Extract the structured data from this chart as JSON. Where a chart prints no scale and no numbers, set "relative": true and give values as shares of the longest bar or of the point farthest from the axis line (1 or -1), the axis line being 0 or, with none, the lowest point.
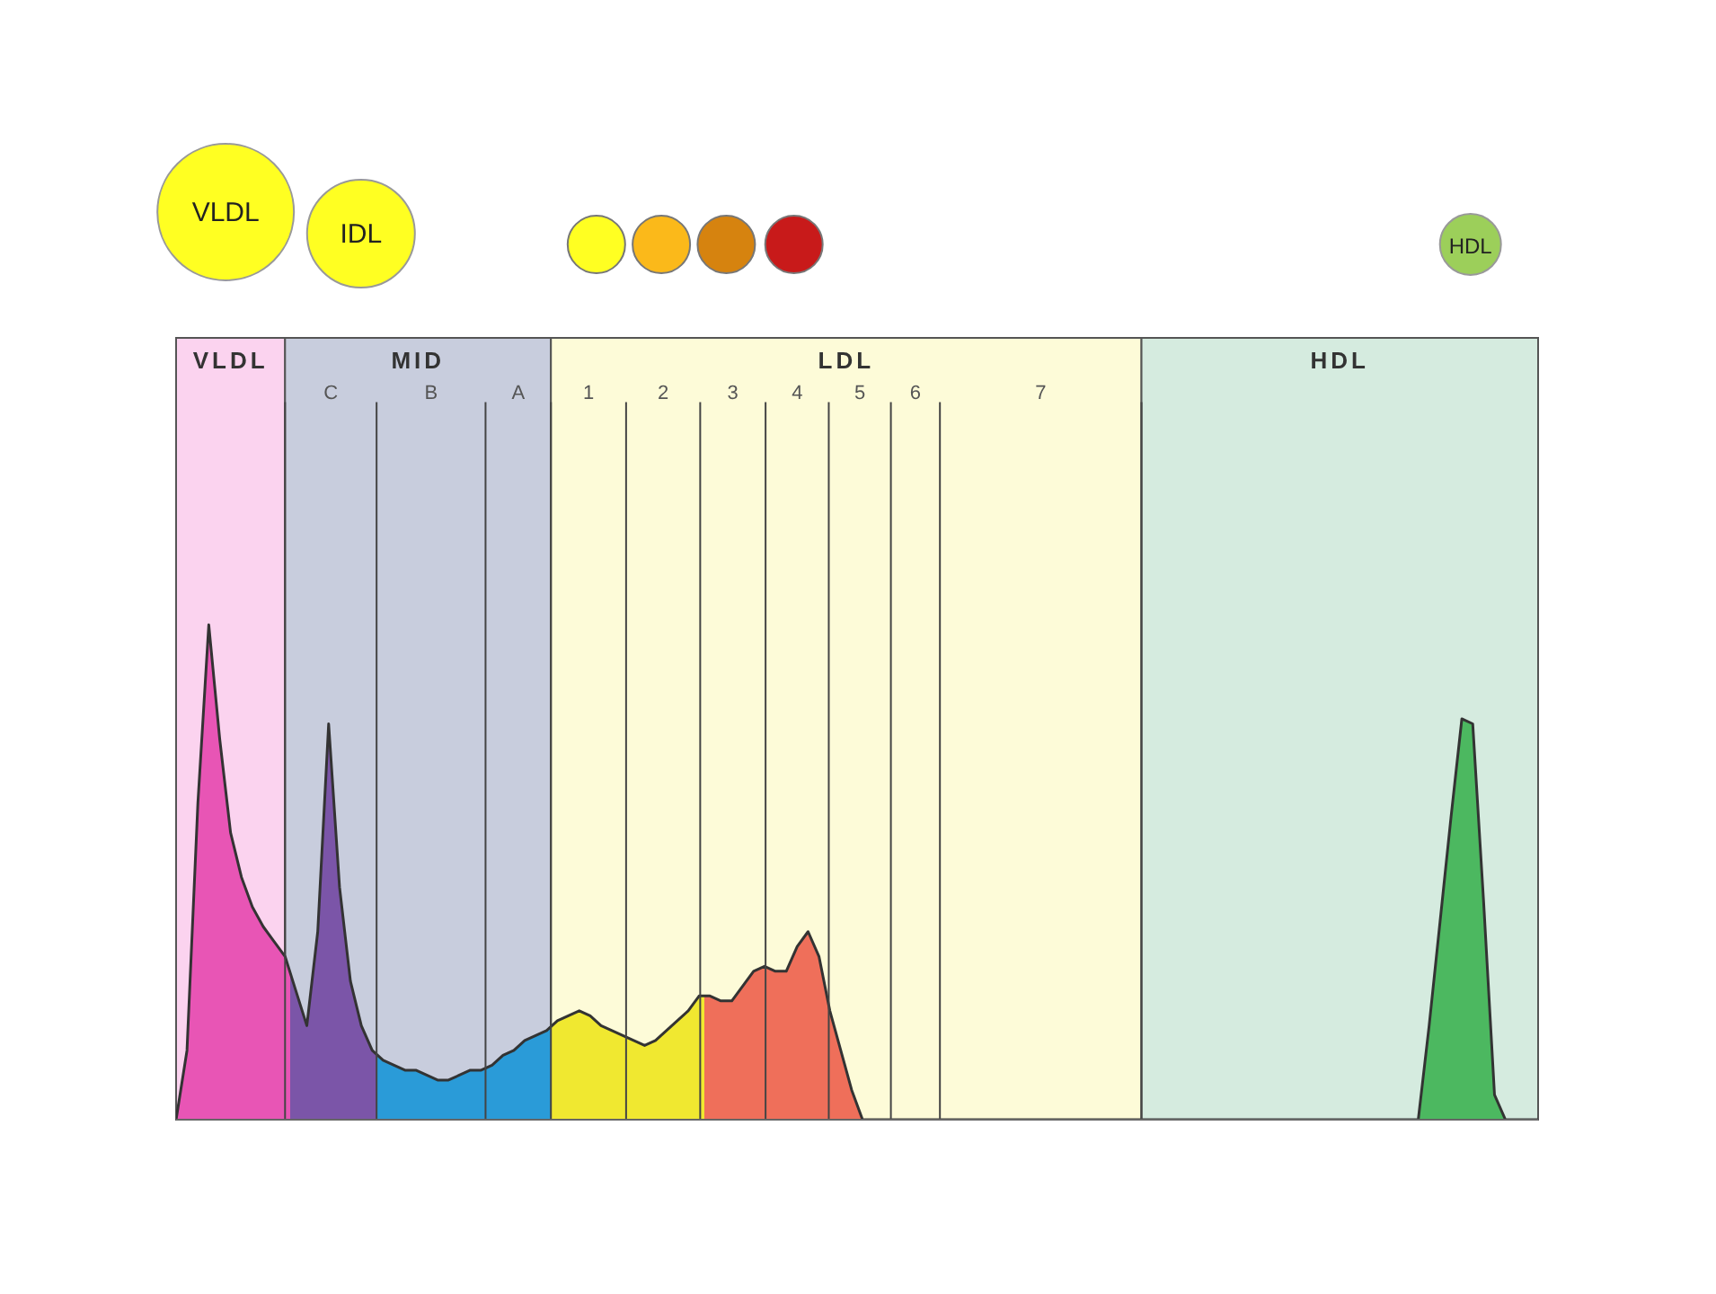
{
  "chart_data": {
    "type": "area",
    "relative": true,
    "tick_labels": false,
    "color": "#333333",
    "categories": [
      null,
      null,
      null,
      null,
      null,
      null,
      null,
      null,
      null,
      null,
      null,
      null,
      null,
      null,
      null,
      null,
      null,
      null,
      null,
      null,
      null,
      null,
      null,
      null,
      null,
      null,
      null,
      null,
      null,
      null,
      null,
      null,
      null,
      null,
      null,
      null,
      null,
      null,
      null,
      null,
      null,
      null,
      null,
      null,
      null,
      null,
      null,
      null,
      null,
      null,
      null,
      null,
      null,
      null,
      null,
      null,
      null,
      null,
      null,
      null,
      null,
      null,
      null,
      null,
      null,
      null,
      null,
      null,
      null,
      null,
      null,
      null,
      null,
      null,
      null,
      null,
      null,
      null,
      null,
      null,
      null,
      null,
      null,
      null,
      null,
      null,
      null,
      null,
      null,
      null,
      null,
      null,
      null,
      null,
      null,
      null,
      null,
      null,
      null,
      null,
      null,
      null,
      null,
      null,
      null,
      null,
      null,
      null,
      null,
      null,
      null,
      null,
      null,
      null,
      null,
      null,
      null,
      null,
      null,
      null,
      null,
      null,
      null,
      null,
      null,
      null
    ],
    "values": [
      0,
      0.14,
      0.64,
      1.0,
      0.77,
      0.58,
      0.49,
      0.43,
      0.39,
      0.36,
      0.33,
      0.26,
      0.19,
      0.38,
      0.8,
      0.47,
      0.28,
      0.19,
      0.14,
      0.12,
      0.11,
      0.1,
      0.1,
      0.09,
      0.08,
      0.08,
      0.09,
      0.1,
      0.1,
      0.11,
      0.13,
      0.14,
      0.16,
      0.17,
      0.18,
      0.2,
      0.21,
      0.22,
      0.21,
      0.19,
      0.18,
      0.17,
      0.16,
      0.15,
      0.16,
      0.18,
      0.2,
      0.22,
      0.25,
      0.25,
      0.24,
      0.24,
      0.27,
      0.3,
      0.31,
      0.3,
      0.3,
      0.35,
      0.38,
      0.33,
      0.22,
      0.14,
      0.06,
      0,
      0,
      0,
      0,
      0,
      0,
      0,
      0,
      0,
      0,
      0,
      0,
      0,
      0,
      0,
      0,
      0,
      0,
      0,
      0,
      0,
      0,
      0,
      0,
      0,
      0,
      0,
      0,
      0,
      0,
      0,
      0,
      0,
      0,
      0,
      0,
      0,
      0,
      0,
      0,
      0,
      0,
      0,
      0,
      0,
      0,
      0,
      0,
      0,
      0,
      0,
      0,
      0.19,
      0.4,
      0.61,
      0.81,
      0.8,
      0.44,
      0.05,
      0,
      0,
      0,
      0
    ],
    "colors": [
      "#e855b5",
      "#e855b5",
      "#e855b5",
      "#e855b5",
      "#e855b5",
      "#e855b5",
      "#e855b5",
      "#e855b5",
      "#e855b5",
      "#e855b5",
      "#e855b5",
      "#7b55a8",
      "#7b55a8",
      "#7b55a8",
      "#7b55a8",
      "#7b55a8",
      "#7b55a8",
      "#7b55a8",
      "#7b55a8",
      "#2a9bd8",
      "#2a9bd8",
      "#2a9bd8",
      "#2a9bd8",
      "#2a9bd8",
      "#2a9bd8",
      "#2a9bd8",
      "#2a9bd8",
      "#2a9bd8",
      "#2a9bd8",
      "#2a9bd8",
      "#2a9bd8",
      "#2a9bd8",
      "#2a9bd8",
      "#2a9bd8",
      "#2a9bd8",
      "#f0e830",
      "#f0e830",
      "#f0e830",
      "#f0e830",
      "#f0e830",
      "#f0e830",
      "#f0e830",
      "#f0e830",
      "#f0e830",
      "#f0e830",
      "#f0e830",
      "#f0e830",
      "#f0e830",
      "#f0e830",
      "#ef6f5a",
      "#ef6f5a",
      "#ef6f5a",
      "#ef6f5a",
      "#ef6f5a",
      "#ef6f5a",
      "#ef6f5a",
      "#ef6f5a",
      "#ef6f5a",
      "#ef6f5a",
      "#ef6f5a",
      "#ef6f5a",
      "#ef6f5a",
      "#ef6f5a",
      "#ef6f5a",
      "#4cb860",
      "#4cb860",
      "#4cb860",
      "#4cb860",
      "#4cb860",
      "#4cb860",
      "#4cb860",
      "#4cb860",
      "#4cb860",
      "#4cb860",
      "#4cb860",
      "#4cb860",
      "#4cb860",
      "#4cb860",
      "#4cb860",
      "#4cb860",
      "#4cb860",
      "#4cb860",
      "#4cb860",
      "#4cb860",
      "#4cb860",
      "#4cb860",
      "#4cb860",
      "#4cb860",
      "#4cb860",
      "#4cb860",
      "#4cb860",
      "#4cb860",
      "#4cb860",
      "#4cb860",
      "#4cb860",
      "#4cb860",
      "#4cb860",
      "#4cb860",
      "#4cb860",
      "#4cb860",
      "#4cb860",
      "#4cb860",
      "#4cb860",
      "#4cb860",
      "#4cb860",
      "#4cb860",
      "#4cb860",
      "#4cb860",
      "#4cb860",
      "#4cb860",
      "#4cb860",
      "#4cb860",
      "#4cb860",
      "#4cb860",
      "#4cb860",
      "#4cb860",
      "#4cb860",
      "#4cb860",
      "#4cb860",
      "#4cb860",
      "#4cb860",
      "#4cb860",
      "#4cb860",
      "#4cb860",
      "#4cb860",
      "#4cb860"
    ],
    "annotations": [
      "VLDL",
      "IDL",
      "HDL",
      "VLDL",
      "MID",
      "LDL",
      "HDL",
      "C",
      "B",
      "A",
      "1",
      "2",
      "3",
      "4",
      "5",
      "6",
      "7"
    ]
  }
}
